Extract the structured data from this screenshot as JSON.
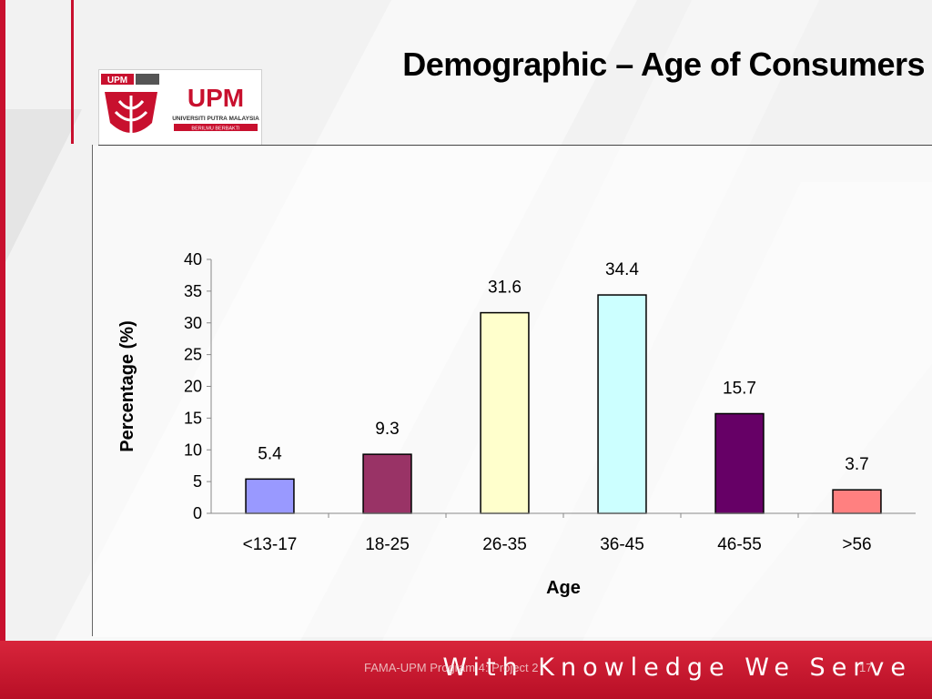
{
  "slide": {
    "title": "Demographic – Age of Consumers",
    "footer_program": "FAMA-UPM Program 4: Project 2",
    "footer_slogan": "With Knowledge We Serve",
    "page_number": "17"
  },
  "logo": {
    "badge_text": "UPM",
    "wordmark": "UPM",
    "university_name": "UNIVERSITI PUTRA MALAYSIA",
    "motto": "BERILMU BERBAKTI"
  },
  "colors": {
    "brand_red": "#c8102e",
    "footer_red": "#c8102e"
  },
  "chart_data": {
    "type": "bar",
    "categories": [
      "<13-17",
      "18-25",
      "26-35",
      "36-45",
      "46-55",
      ">56"
    ],
    "values": [
      5.4,
      9.3,
      31.6,
      34.4,
      15.7,
      3.7
    ],
    "data_labels": [
      "5.4",
      "9.3",
      "31.6",
      "34.4",
      "15.7",
      "3.7"
    ],
    "bar_colors": [
      "#9999ff",
      "#993366",
      "#ffffcc",
      "#ccffff",
      "#660066",
      "#ff8080"
    ],
    "title": "",
    "xlabel": "Age",
    "ylabel": "Percentage (%)",
    "ylim": [
      0,
      40
    ],
    "yticks": [
      0,
      5,
      10,
      15,
      20,
      25,
      30,
      35,
      40
    ],
    "grid": false,
    "legend": "none"
  }
}
